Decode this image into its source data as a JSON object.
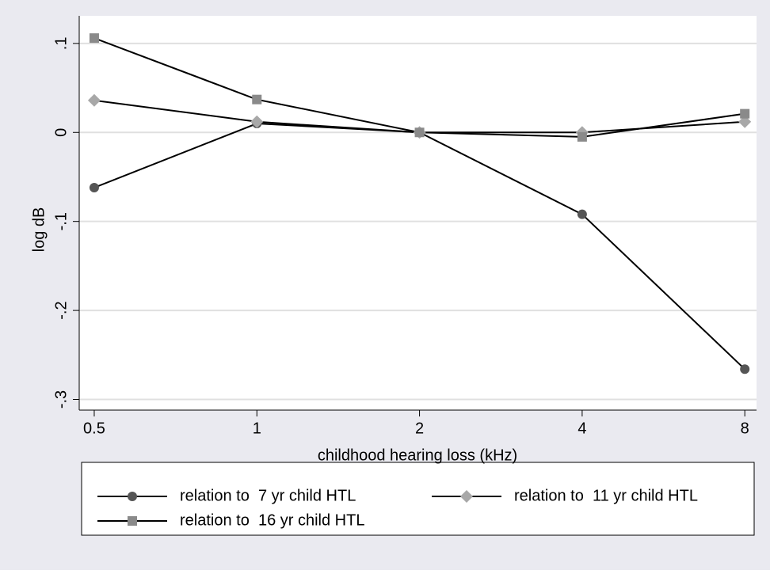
{
  "chart_data": {
    "type": "line",
    "x": [
      0.5,
      1,
      2,
      4,
      8
    ],
    "xlog": true,
    "xlim": [
      0.469,
      8.41
    ],
    "xticks": [
      0.5,
      1,
      2,
      4,
      8
    ],
    "ylim": [
      -0.312,
      0.131
    ],
    "yticks": [
      {
        "value": 0.1,
        "label": ".1"
      },
      0,
      {
        "value": -0.1,
        "label": "-.1"
      },
      {
        "value": -0.2,
        "label": "-.2"
      },
      {
        "value": -0.3,
        "label": "-.3"
      }
    ],
    "xlabel": "childhood hearing loss (kHz)",
    "ylabel": "log dB",
    "grid": true,
    "legend": "bottom",
    "series": [
      {
        "name": "relation to  7 yr child HTL",
        "color": "#555555",
        "marker": "circle",
        "values": [
          -0.062,
          0.01,
          0,
          -0.092,
          -0.266
        ]
      },
      {
        "name": "relation to  11 yr child HTL",
        "color": "#a8a8a8",
        "marker": "diamond",
        "values": [
          0.036,
          0.012,
          0,
          0,
          0.012
        ]
      },
      {
        "name": "relation to  16 yr child HTL",
        "color": "#8a8a8a",
        "marker": "square",
        "values": [
          0.106,
          0.037,
          0,
          -0.005,
          0.021
        ]
      }
    ]
  }
}
